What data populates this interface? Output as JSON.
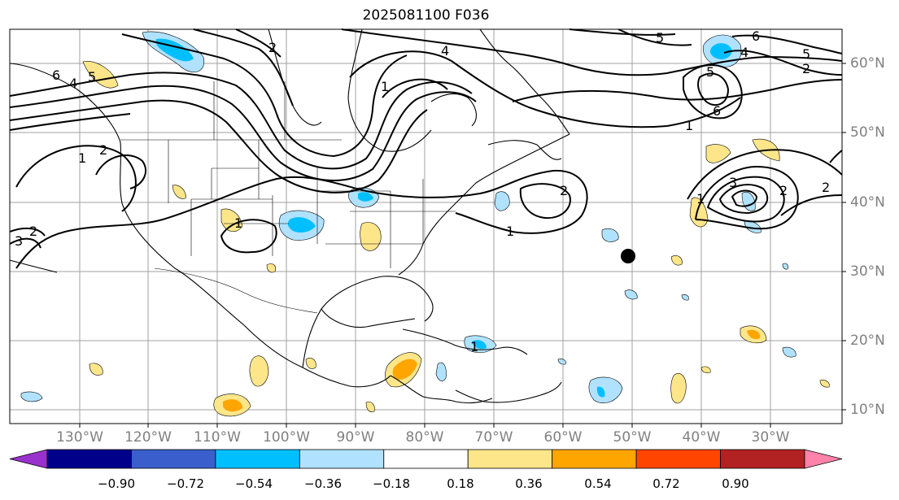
{
  "title": "2025081100 F036",
  "longitude_labels": [
    "130°W",
    "120°W",
    "110°W",
    "100°W",
    "90°W",
    "80°W",
    "70°W",
    "60°W",
    "50°W",
    "40°W",
    "30°W"
  ],
  "latitude_labels": [
    "60°N",
    "50°N",
    "40°N",
    "30°N",
    "20°N",
    "10°N"
  ],
  "colorbar": {
    "levels": [
      "−0.90",
      "−0.72",
      "−0.54",
      "−0.36",
      "−0.18",
      "0.18",
      "0.36",
      "0.54",
      "0.72",
      "0.90"
    ],
    "colors": [
      "#9932cc",
      "#00008b",
      "#3a5fcd",
      "#00bfff",
      "#b0e2ff",
      "#ffffff",
      "#fde68a",
      "#ffa500",
      "#ff4500",
      "#b22222",
      "#ff82ab"
    ]
  },
  "contour_labels": [
    "1",
    "2",
    "3",
    "4",
    "5",
    "6"
  ],
  "colors": {
    "axis_label": "#808080",
    "grid": "#a0a0a0",
    "coast": "#000000"
  },
  "marker": "black-dot"
}
